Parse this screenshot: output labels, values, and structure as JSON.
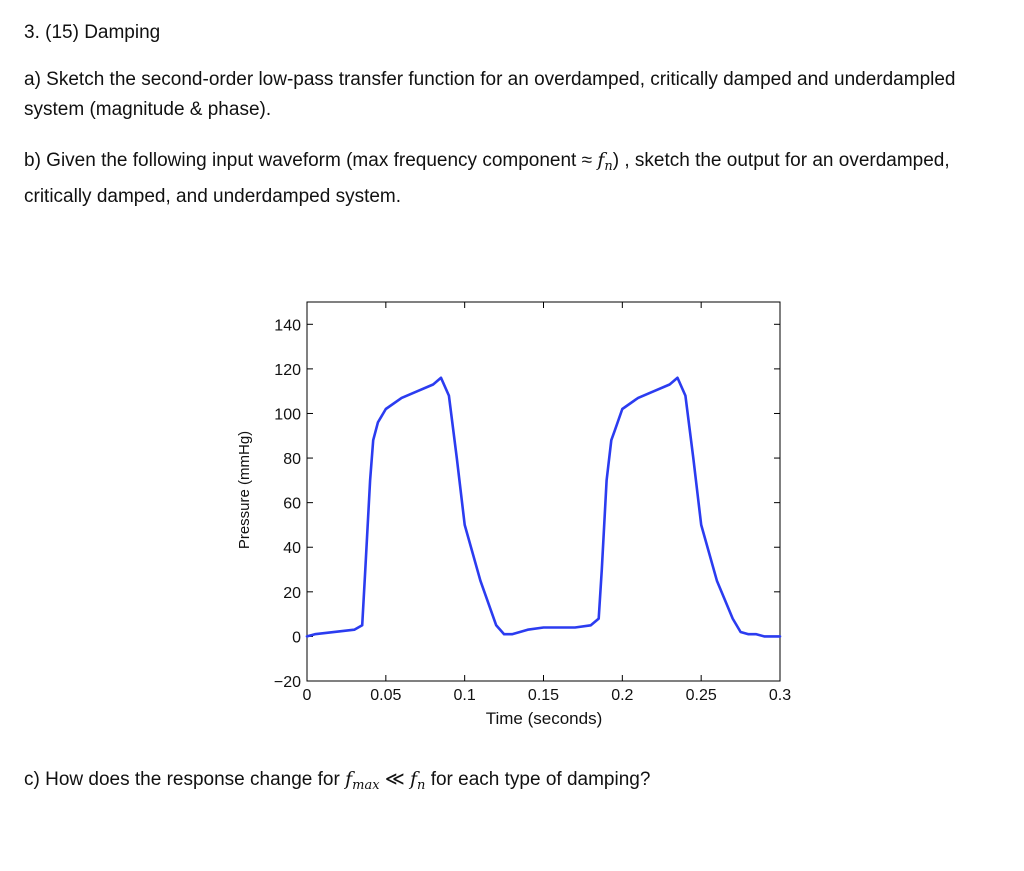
{
  "question": {
    "title": "3. (15) Damping",
    "part_a": "a) Sketch the second-order low-pass transfer function for an overdamped, critically damped and underdampled system (magnitude & phase).",
    "part_b_before": "b) Given the following input waveform (max frequency component ≈ ",
    "part_b_fn_main": "f",
    "part_b_fn_sub": "n",
    "part_b_after": ") , sketch the output for an overdamped, critically damped, and underdamped system.",
    "part_c_before": "c) How does the response change for ",
    "part_c_fmax_main": "f",
    "part_c_fmax_sub": "max",
    "part_c_relation": " ≪ ",
    "part_c_fn_main": "f",
    "part_c_fn_sub": "n",
    "part_c_after": " for each type of damping?"
  },
  "chart_data": {
    "type": "line",
    "title": "",
    "xlabel": "Time (seconds)",
    "ylabel": "Pressure (mmHg)",
    "xlim": [
      0,
      0.3
    ],
    "ylim": [
      -20,
      150
    ],
    "x_ticks": [
      0,
      0.05,
      0.1,
      0.15,
      0.2,
      0.25,
      0.3
    ],
    "x_tick_labels": [
      "0",
      "0.05",
      "0.1",
      "0.15",
      "0.2",
      "0.25",
      "0.3"
    ],
    "y_ticks": [
      -20,
      0,
      20,
      40,
      60,
      80,
      100,
      120,
      140
    ],
    "y_tick_labels": [
      "−20",
      "0",
      "20",
      "40",
      "60",
      "80",
      "100",
      "120",
      "140"
    ],
    "grid": false,
    "line_color": "#2b3cf0",
    "series": [
      {
        "x": [
          0,
          0.005,
          0.03,
          0.035,
          0.037,
          0.04,
          0.042,
          0.045,
          0.05,
          0.06,
          0.07,
          0.08,
          0.085,
          0.09,
          0.095,
          0.1,
          0.11,
          0.12,
          0.125,
          0.13,
          0.135,
          0.14,
          0.15,
          0.16,
          0.17,
          0.18,
          0.185,
          0.187,
          0.19,
          0.193,
          0.195,
          0.2,
          0.21,
          0.22,
          0.23,
          0.235,
          0.24,
          0.245,
          0.25,
          0.26,
          0.27,
          0.275,
          0.28,
          0.285,
          0.29,
          0.295,
          0.3
        ],
        "y": [
          0,
          1,
          3,
          5,
          30,
          70,
          88,
          96,
          102,
          107,
          110,
          113,
          116,
          108,
          80,
          50,
          25,
          5,
          1,
          1,
          2,
          3,
          4,
          4,
          4,
          5,
          8,
          30,
          70,
          88,
          92,
          102,
          107,
          110,
          113,
          116,
          108,
          80,
          50,
          25,
          8,
          2,
          1,
          1,
          0,
          0,
          0
        ]
      }
    ]
  }
}
